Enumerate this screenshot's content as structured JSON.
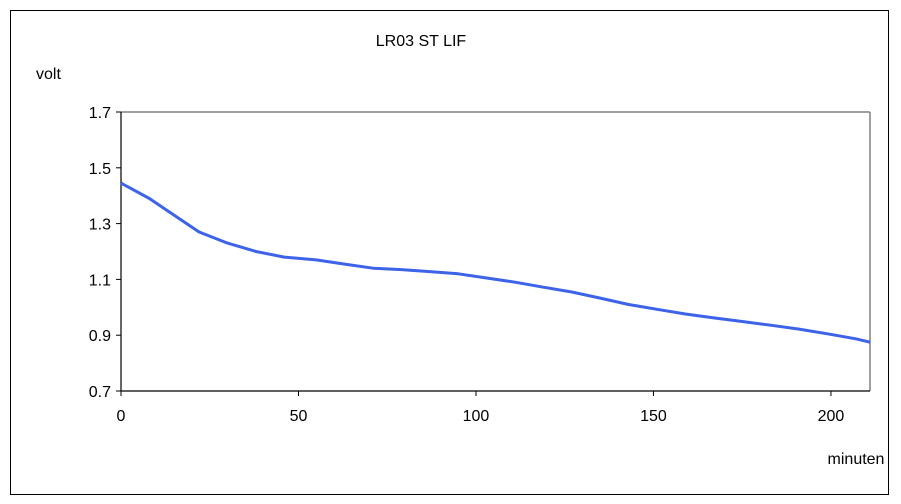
{
  "chart_data": {
    "type": "line",
    "title": "LR03 ST LIF",
    "xlabel": "minuten",
    "ylabel": "volt",
    "xlim": [
      0,
      211
    ],
    "ylim": [
      0.7,
      1.7
    ],
    "xticks": [
      "0",
      "50",
      "100",
      "150",
      "200"
    ],
    "yticks": [
      "0.7",
      "0.9",
      "1.1",
      "1.3",
      "1.5",
      "1.7"
    ],
    "grid": false,
    "legend": "none",
    "series": [
      {
        "color": "#3d63e8",
        "x": [
          0,
          8,
          15,
          22,
          30,
          38,
          46,
          55,
          63,
          71,
          79,
          87,
          95,
          103,
          111,
          119,
          127,
          135,
          143,
          151,
          159,
          167,
          175,
          183,
          191,
          199,
          207,
          211
        ],
        "y": [
          1.445,
          1.39,
          1.33,
          1.27,
          1.23,
          1.2,
          1.18,
          1.17,
          1.155,
          1.14,
          1.135,
          1.128,
          1.12,
          1.105,
          1.09,
          1.072,
          1.055,
          1.033,
          1.01,
          0.993,
          0.976,
          0.962,
          0.949,
          0.936,
          0.922,
          0.905,
          0.887,
          0.875
        ]
      }
    ]
  }
}
